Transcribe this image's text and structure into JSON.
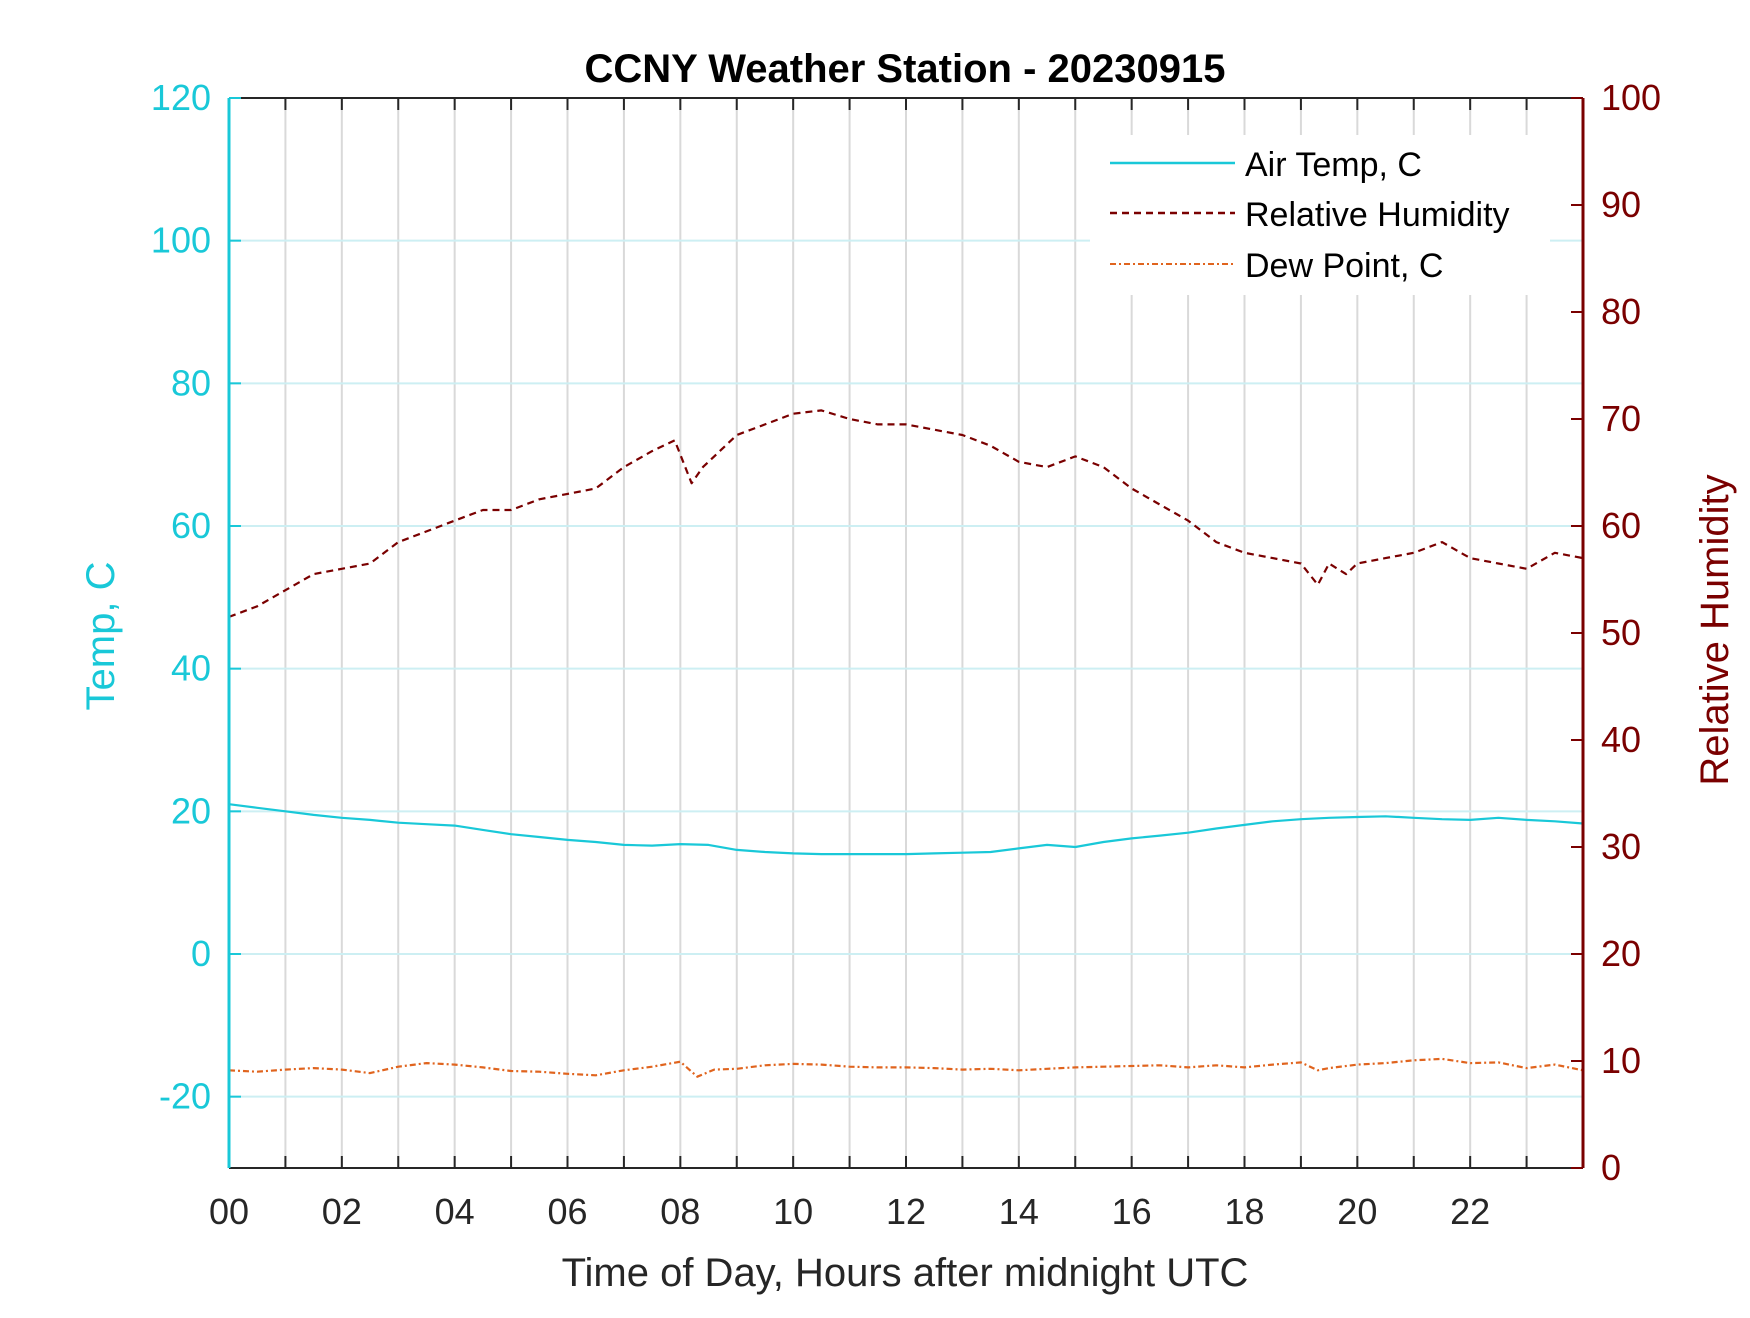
{
  "chart_data": {
    "type": "line",
    "title": "CCNY Weather Station - 20230915",
    "xlabel": "Time of Day, Hours after midnight UTC",
    "ylabel_left": "Temp, C",
    "ylabel_right": "Relative Humidity",
    "xlim": [
      0,
      24
    ],
    "ylim_left": [
      -30,
      120
    ],
    "ylim_right": [
      0,
      100
    ],
    "x_ticks": [
      "00",
      "02",
      "04",
      "06",
      "08",
      "10",
      "12",
      "14",
      "16",
      "18",
      "20",
      "22"
    ],
    "x_tick_values": [
      0,
      2,
      4,
      6,
      8,
      10,
      12,
      14,
      16,
      18,
      20,
      22
    ],
    "y_left_ticks": [
      "-20",
      "0",
      "20",
      "40",
      "60",
      "80",
      "100",
      "120"
    ],
    "y_left_tick_values": [
      -20,
      0,
      20,
      40,
      60,
      80,
      100,
      120
    ],
    "y_right_ticks": [
      "0",
      "10",
      "20",
      "30",
      "40",
      "50",
      "60",
      "70",
      "80",
      "90",
      "100"
    ],
    "y_right_tick_values": [
      0,
      10,
      20,
      30,
      40,
      50,
      60,
      70,
      80,
      90,
      100
    ],
    "grid": true,
    "legend_position": "top-right",
    "colors": {
      "air_temp": "#19c8d8",
      "relative_humidity": "#7a0000",
      "dew_point": "#e0641e",
      "left_axis": "#19c8d8",
      "right_axis": "#7a0000",
      "grid": "#d9d9d9"
    },
    "series": [
      {
        "name": "Air Temp, C",
        "axis": "left",
        "style": "solid",
        "x": [
          0,
          0.5,
          1,
          1.5,
          2,
          2.5,
          3,
          3.5,
          4,
          4.5,
          5,
          5.5,
          6,
          6.5,
          7,
          7.5,
          8,
          8.5,
          9,
          9.5,
          10,
          10.5,
          11,
          11.5,
          12,
          12.5,
          13,
          13.5,
          14,
          14.5,
          15,
          15.5,
          16,
          16.5,
          17,
          17.5,
          18,
          18.5,
          19,
          19.5,
          20,
          20.5,
          21,
          21.5,
          22,
          22.5,
          23,
          23.5,
          24
        ],
        "values": [
          21,
          20.5,
          20,
          19.5,
          19.1,
          18.8,
          18.4,
          18.2,
          18.0,
          17.4,
          16.8,
          16.4,
          16.0,
          15.7,
          15.3,
          15.2,
          15.4,
          15.3,
          14.6,
          14.3,
          14.1,
          14.0,
          14.0,
          14.0,
          14.0,
          14.1,
          14.2,
          14.3,
          14.8,
          15.3,
          15.0,
          15.7,
          16.2,
          16.6,
          17.0,
          17.6,
          18.1,
          18.6,
          18.9,
          19.1,
          19.2,
          19.3,
          19.1,
          18.9,
          18.8,
          19.1,
          18.8,
          18.6,
          18.3
        ]
      },
      {
        "name": "Relative Humidity",
        "axis": "right",
        "style": "dashed",
        "x": [
          0,
          0.5,
          1,
          1.5,
          2,
          2.5,
          3,
          3.5,
          4,
          4.5,
          5,
          5.5,
          6,
          6.5,
          7,
          7.5,
          7.9,
          8.2,
          8.4,
          8.6,
          9,
          9.5,
          10,
          10.5,
          11,
          11.5,
          12,
          12.5,
          13,
          13.5,
          14,
          14.5,
          15,
          15.5,
          16,
          16.5,
          17,
          17.5,
          18,
          18.5,
          19,
          19.3,
          19.5,
          19.8,
          20,
          20.5,
          21,
          21.5,
          22,
          22.5,
          23,
          23.5,
          24
        ],
        "values": [
          51.5,
          52.5,
          54,
          55.5,
          56,
          56.5,
          58.5,
          59.5,
          60.5,
          61.5,
          61.5,
          62.5,
          63,
          63.5,
          65.5,
          67,
          68,
          64,
          65.5,
          66.5,
          68.5,
          69.5,
          70.5,
          70.8,
          70,
          69.5,
          69.5,
          69,
          68.5,
          67.5,
          66,
          65.5,
          66.5,
          65.5,
          63.5,
          62,
          60.5,
          58.5,
          57.5,
          57,
          56.5,
          54.5,
          56.5,
          55.5,
          56.5,
          57,
          57.5,
          58.5,
          57,
          56.5,
          56,
          57.5,
          57
        ]
      },
      {
        "name": "Dew Point, C",
        "axis": "left",
        "style": "dashdot",
        "x": [
          0,
          0.5,
          1,
          1.5,
          2,
          2.5,
          3,
          3.5,
          4,
          4.5,
          5,
          5.5,
          6,
          6.5,
          7,
          7.5,
          8,
          8.3,
          8.6,
          9,
          9.5,
          10,
          10.5,
          11,
          11.5,
          12,
          12.5,
          13,
          13.5,
          14,
          14.5,
          15,
          15.5,
          16,
          16.5,
          17,
          17.5,
          18,
          18.5,
          19,
          19.3,
          19.5,
          20,
          20.5,
          21,
          21.5,
          22,
          22.5,
          23,
          23.5,
          24
        ],
        "values": [
          -16.3,
          -16.5,
          -16.2,
          -16,
          -16.2,
          -16.7,
          -15.8,
          -15.3,
          -15.5,
          -15.9,
          -16.4,
          -16.5,
          -16.8,
          -17,
          -16.3,
          -15.8,
          -15.1,
          -17.2,
          -16.2,
          -16.1,
          -15.6,
          -15.4,
          -15.5,
          -15.8,
          -15.9,
          -15.9,
          -16,
          -16.2,
          -16.1,
          -16.3,
          -16.1,
          -15.9,
          -15.8,
          -15.7,
          -15.6,
          -15.9,
          -15.6,
          -15.9,
          -15.5,
          -15.2,
          -16.3,
          -16.0,
          -15.5,
          -15.3,
          -14.9,
          -14.7,
          -15.3,
          -15.2,
          -16.0,
          -15.5,
          -16.3
        ]
      }
    ]
  }
}
